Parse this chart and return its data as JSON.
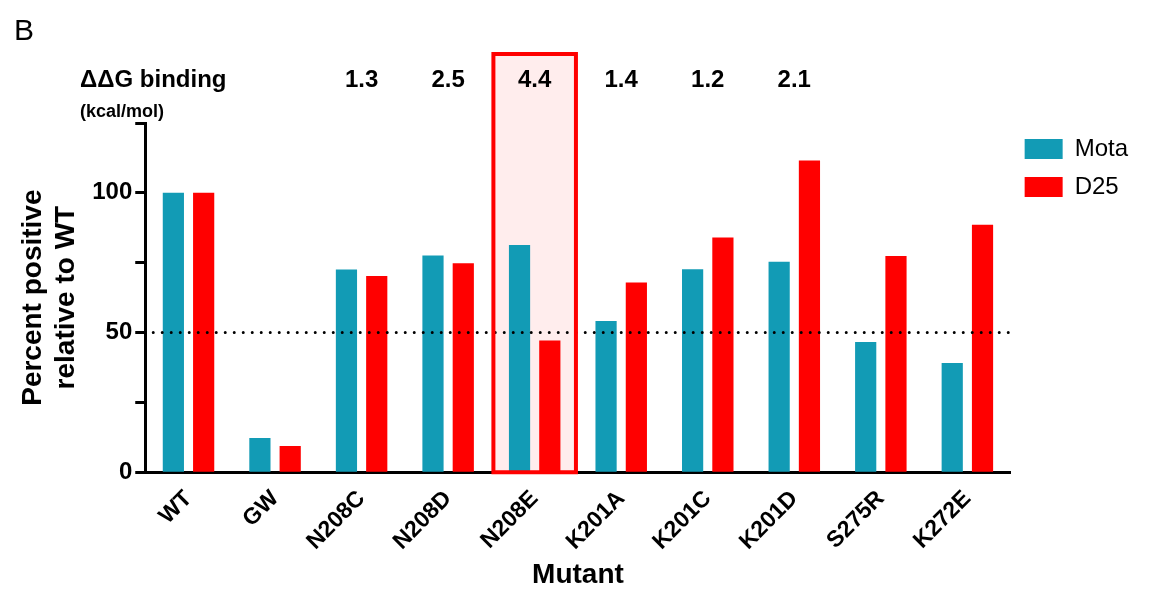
{
  "chart_data": {
    "type": "bar",
    "title": "B",
    "xlabel": "Mutant",
    "ylabel": "Percent positive\nrelative to WT",
    "categories": [
      "WT",
      "GW",
      "N208C",
      "N208D",
      "N208E",
      "K201A",
      "K201C",
      "K201D",
      "S275R",
      "K272E"
    ],
    "series": [
      {
        "name": "Mota",
        "color": "#129bb5",
        "values": [
          100,
          12.3,
          72.6,
          77.6,
          81.3,
          54.1,
          72.7,
          75.3,
          46.6,
          39.1
        ]
      },
      {
        "name": "D25",
        "color": "#ff0000",
        "values": [
          100,
          9.4,
          70.2,
          74.8,
          47.2,
          67.9,
          84,
          111.6,
          77.4,
          88.6
        ]
      }
    ],
    "ylim": [
      0,
      125
    ],
    "yticks": [
      0,
      {
        "value": 25,
        "label": null
      },
      50,
      {
        "value": 75,
        "label": null
      },
      100,
      {
        "value": 125,
        "label": null
      }
    ],
    "ref_lines": [
      {
        "axis": "y",
        "value": 50,
        "color": "#000000",
        "line_style": "dotted"
      }
    ],
    "bands": [
      {
        "axis": "x",
        "from": "N208E",
        "to": "N208E",
        "color": "#ff0000"
      }
    ],
    "annotations": [
      "ΔΔG binding",
      "(kcal/mol)",
      "1.3",
      "2.5",
      "4.4",
      "1.4",
      "1.2",
      "2.1"
    ],
    "grid": false,
    "legend": "right"
  }
}
